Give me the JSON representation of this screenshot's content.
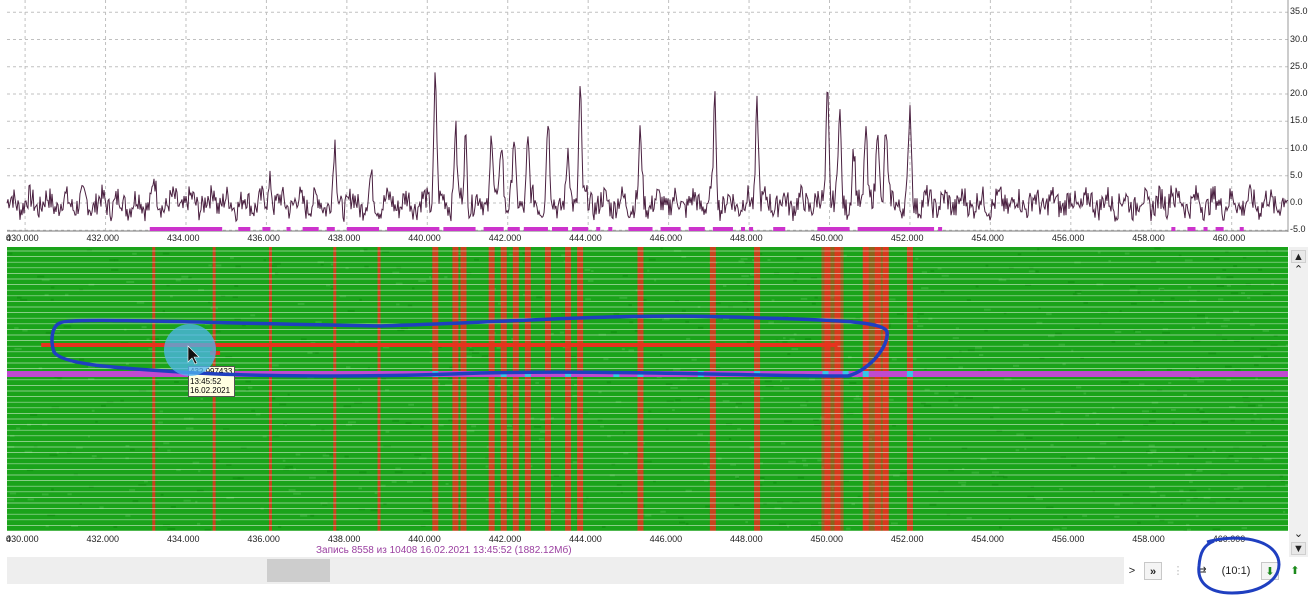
{
  "spectrum": {
    "y_ticks": [
      "35.0",
      "30.0",
      "25.0",
      "20.0",
      "15.0",
      "10.0",
      "5.0",
      "0.0",
      "-5.0"
    ]
  },
  "x_axis": {
    "ticks": [
      "0",
      "430.000",
      "432.000",
      "434.000",
      "436.000",
      "438.000",
      "440.000",
      "442.000",
      "444.000",
      "446.000",
      "448.000",
      "450.000",
      "452.000",
      "454.000",
      "456.000",
      "458.000",
      "460.000"
    ],
    "range": [
      429.55,
      461.4
    ]
  },
  "waterfall": {
    "peak_frequencies": [
      433.2,
      434.7,
      436.1,
      437.7,
      438.8,
      440.2,
      440.7,
      440.9,
      441.6,
      441.9,
      442.2,
      442.5,
      443.0,
      443.5,
      443.8,
      445.3,
      447.1,
      448.2,
      449.95,
      450.2,
      450.9,
      451.2,
      451.4,
      452.0
    ],
    "highlight_frequencies": [
      440.2,
      441.9,
      442.5,
      443.5,
      444.7,
      445.3,
      446.8,
      448.2,
      449.9,
      450.4,
      450.9,
      452.0
    ]
  },
  "tooltip": {
    "frequency": "432.997433",
    "time": "13:45:52",
    "date": "16.02.2021"
  },
  "status": {
    "record_text": "Запись 8558  из 10408   16.02.2021 13:45:52 (1882.12Мб)"
  },
  "toolbar": {
    "ratio_label": "(10:1)",
    "next_label": ">",
    "fast_forward_label": "»"
  },
  "scrollbar": {
    "top_icon": "double-up-arrow-icon",
    "up_icon": "up-arrow-icon",
    "down_icon": "down-arrow-icon",
    "bottom_icon": "double-down-arrow-icon"
  },
  "colors": {
    "waterfall_bg": "#1aa31a",
    "peak": "#e8321e",
    "highlight_row": "#c04ad0",
    "highlight_cyan": "#35c7e6",
    "spectrum_trace": "#4a2040",
    "marker_magenta": "#cc33cc",
    "annotation_blue": "#1f3fc0"
  }
}
